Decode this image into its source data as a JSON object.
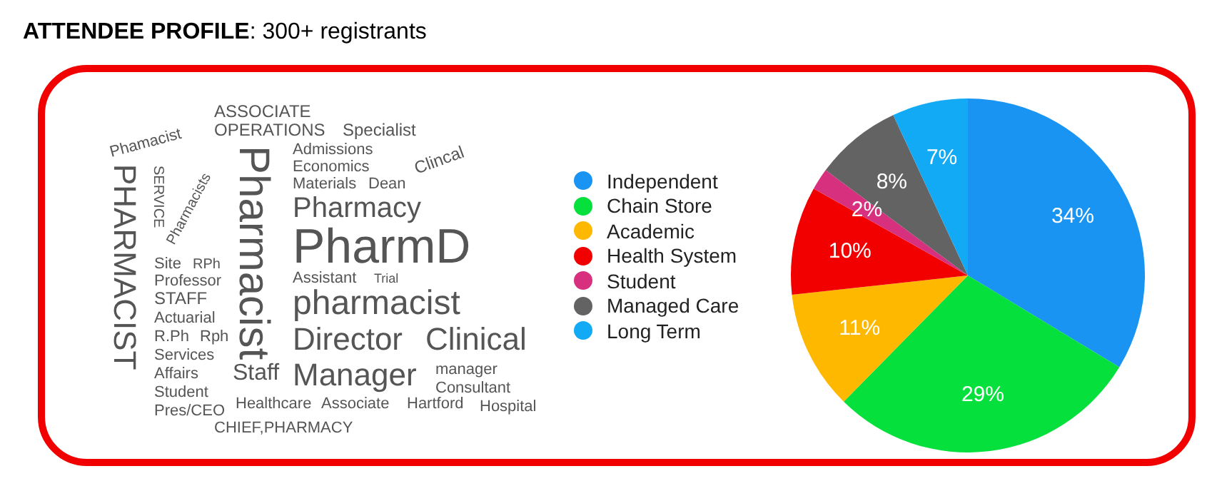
{
  "chart_data": {
    "type": "pie",
    "title": "ATTENDEE PROFILE: 300+ registrants",
    "categories": [
      "Independent",
      "Chain Store",
      "Academic",
      "Health System",
      "Student",
      "Managed Care",
      "Long Term"
    ],
    "values": [
      34,
      29,
      11,
      10,
      2,
      8,
      7
    ],
    "value_labels": [
      "34%",
      "29%",
      "11%",
      "10%",
      "2%",
      "8%",
      "7%"
    ],
    "colors": [
      "#1a94f2",
      "#05e03c",
      "#ffb800",
      "#f20000",
      "#d6307f",
      "#636363",
      "#12aaf5"
    ],
    "legend": "left",
    "annotations": [
      "ASSOCIATE",
      "OPERATIONS",
      "Specialist",
      "Admissions",
      "Phamacist",
      "Pharmacists",
      "Economics",
      "Clincal",
      "Materials",
      "Dean",
      "SERVICE",
      "Pharmacy",
      "PharmD",
      "Pharmacist",
      "RPh",
      "Site",
      "Professor",
      "STAFF",
      "Assistant",
      "Actuarial",
      "PHARMACIST",
      "pharmacist",
      "Director",
      "Clinical",
      "R.Ph",
      "Staff",
      "Trial",
      "Manager",
      "Rph",
      "Services",
      "manager",
      "Affairs",
      "Pres/CEO",
      "Consultant",
      "Student",
      "Hospital",
      "Healthcare",
      "Associate",
      "Hartford",
      "CHIEF,PHARMACY"
    ]
  }
}
